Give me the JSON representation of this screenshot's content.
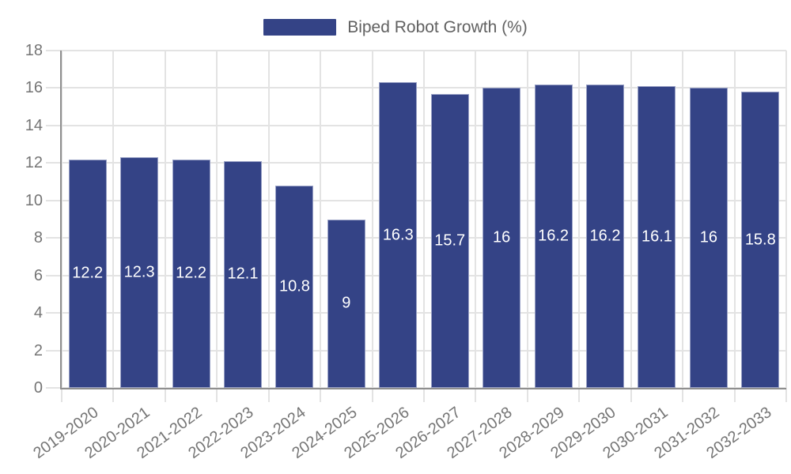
{
  "legend": {
    "label": "Biped Robot Growth (%)"
  },
  "chart_data": {
    "type": "bar",
    "title": "Biped Robot Growth (%)",
    "categories": [
      "2019-2020",
      "2020-2021",
      "2021-2022",
      "2022-2023",
      "2023-2024",
      "2024-2025",
      "2025-2026",
      "2026-2027",
      "2027-2028",
      "2028-2029",
      "2029-2030",
      "2030-2031",
      "2031-2032",
      "2032-2033"
    ],
    "values": [
      12.2,
      12.3,
      12.2,
      12.1,
      10.8,
      9,
      16.3,
      15.7,
      16,
      16.2,
      16.2,
      16.1,
      16,
      15.8
    ],
    "xlabel": "",
    "ylabel": "",
    "ylim": [
      0,
      18
    ],
    "ytick_step": 2,
    "grid": true,
    "legend_position": "top-center",
    "value_labels": "inside-center",
    "colors": {
      "bar": "#344386",
      "bar_border": "#9aa2c6",
      "bar_label": "#ffffff",
      "grid": "#e3e3e3",
      "axis": "#8f8f8f",
      "tick_text": "#757575",
      "legend_text": "#616161",
      "background": "#ffffff"
    }
  }
}
